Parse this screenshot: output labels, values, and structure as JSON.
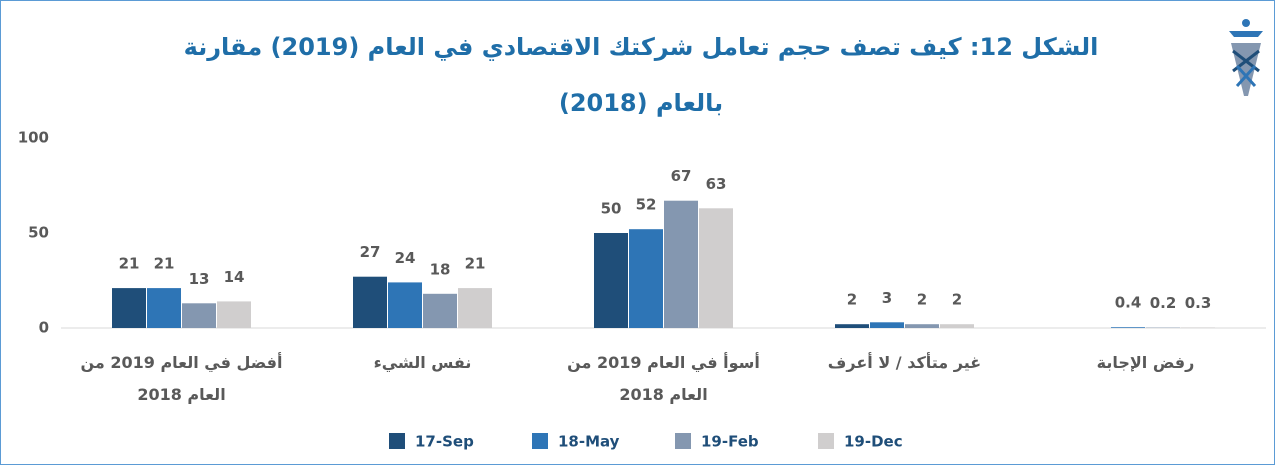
{
  "chart_data": {
    "type": "bar",
    "title": "الشكل 12: كيف تصف حجم تعامل شركتك الاقتصادي في العام (2019) مقارنة بالعام (2018)",
    "categories": [
      "أفضل في العام 2019 من العام 2018",
      "نفس الشيء",
      "أسوأ في العام 2019 من العام 2018",
      "غير متأكد / لا أعرف",
      "رفض الإجابة"
    ],
    "series": [
      {
        "name": "17-Sep",
        "color": "#1f4e79",
        "values": [
          21,
          27,
          50,
          2,
          null
        ]
      },
      {
        "name": "18-May",
        "color": "#2e75b6",
        "values": [
          21,
          24,
          52,
          3,
          0.4
        ]
      },
      {
        "name": "19-Feb",
        "color": "#8497b0",
        "values": [
          13,
          18,
          67,
          2,
          0.2
        ]
      },
      {
        "name": "19-Dec",
        "color": "#d0cece",
        "values": [
          14,
          21,
          63,
          2,
          0.3
        ]
      }
    ],
    "ylim": [
      0,
      100
    ],
    "yticks": [
      0,
      50,
      100
    ],
    "grid": false,
    "legend": "bottom"
  }
}
